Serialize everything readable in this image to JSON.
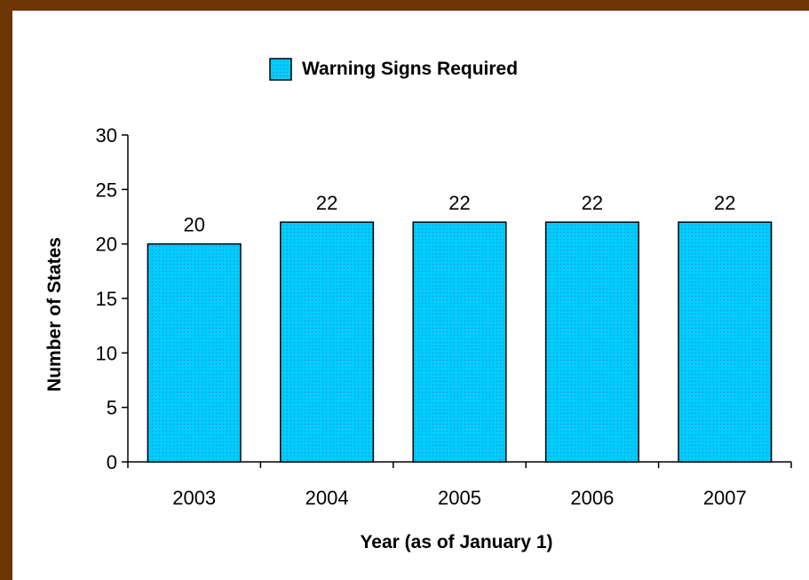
{
  "chart_data": {
    "type": "bar",
    "categories": [
      "2003",
      "2004",
      "2005",
      "2006",
      "2007"
    ],
    "series": [
      {
        "name": "Warning Signs Required",
        "values": [
          20,
          22,
          22,
          22,
          22
        ]
      }
    ],
    "data_labels": [
      "20",
      "22",
      "22",
      "22",
      "22"
    ],
    "xlabel": "Year (as of January 1)",
    "ylabel": "Number of States",
    "ylim": [
      0,
      30
    ],
    "yticks": [
      0,
      5,
      10,
      15,
      20,
      25,
      30
    ],
    "ytick_labels": [
      "0",
      "5",
      "10",
      "15",
      "20",
      "25",
      "30"
    ],
    "grid": false,
    "legend_position": "top-center",
    "colors": {
      "bar_fill": "#00ccff",
      "bar_dots": "#3a7fb0",
      "bar_stroke": "#000000",
      "frame_border": "#6b3506",
      "background": "#ffffff"
    }
  }
}
